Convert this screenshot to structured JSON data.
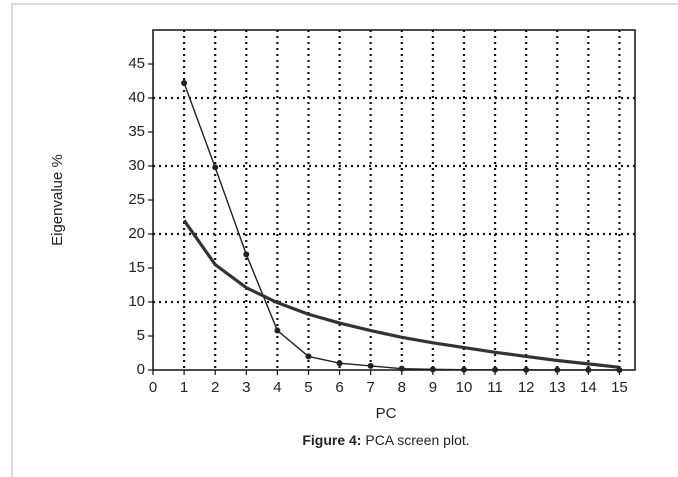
{
  "chart_data": {
    "type": "line",
    "y_label": "Eigenvalue %",
    "x_label": "PC",
    "caption_label": "Figure 4:",
    "caption_text": "PCA screen plot.",
    "x": [
      1,
      2,
      3,
      4,
      5,
      6,
      7,
      8,
      9,
      10,
      11,
      12,
      13,
      14,
      15
    ],
    "series": [
      {
        "color": "#222222",
        "width": 1.4,
        "markers": true,
        "values": [
          42.2,
          29.8,
          17.0,
          5.8,
          2.0,
          1.0,
          0.6,
          0.2,
          0.1,
          0.05,
          0.03,
          0.02,
          0.01,
          0.01,
          0.0
        ]
      },
      {
        "color": "#333333",
        "width": 3.2,
        "markers": false,
        "values": [
          22.0,
          15.5,
          12.1,
          9.9,
          8.2,
          6.9,
          5.8,
          4.8,
          4.0,
          3.3,
          2.6,
          2.0,
          1.4,
          0.9,
          0.4
        ]
      }
    ],
    "xlim": [
      0,
      15.5
    ],
    "ylim": [
      0,
      50
    ],
    "xticks": [
      0,
      1,
      2,
      3,
      4,
      5,
      6,
      7,
      8,
      9,
      10,
      11,
      12,
      13,
      14,
      15
    ],
    "yticks": [
      0,
      5,
      10,
      15,
      20,
      25,
      30,
      35,
      40,
      45
    ],
    "xgrid": [
      1,
      2,
      3,
      4,
      5,
      6,
      7,
      8,
      9,
      10,
      11,
      12,
      13,
      14,
      15
    ],
    "ygrid": [
      10,
      20,
      30,
      40
    ]
  }
}
